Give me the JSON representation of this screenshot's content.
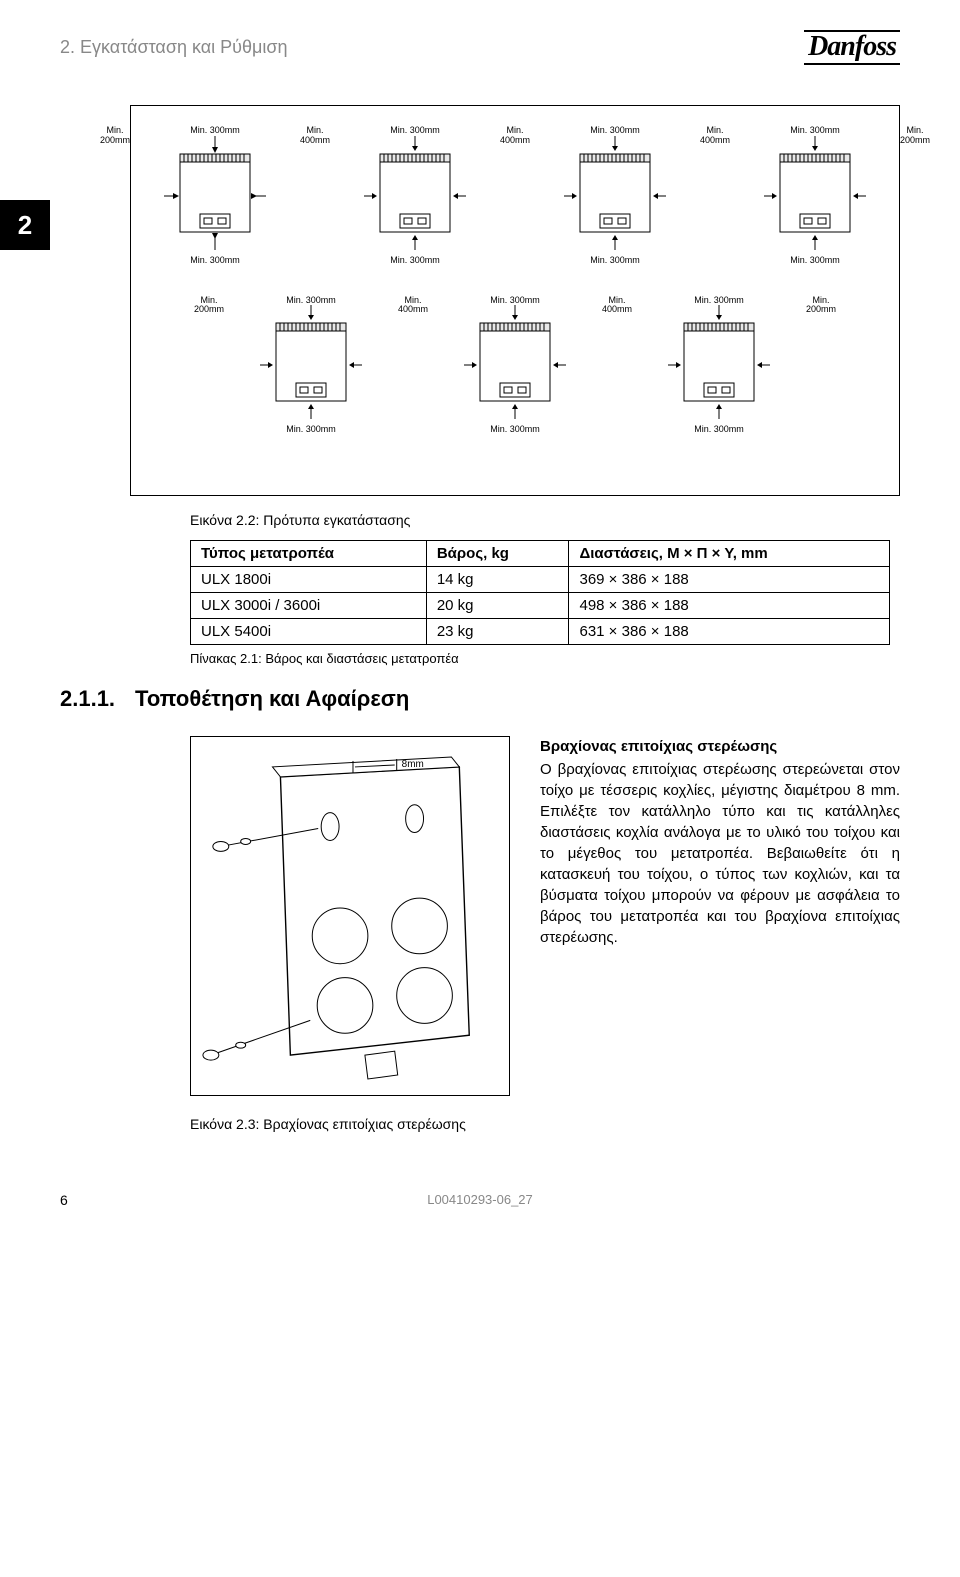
{
  "header": {
    "section_title": "2. Εγκατάσταση και Ρύθμιση",
    "logo_text": "Danfoss"
  },
  "chapter_tab": "2",
  "figure22": {
    "top_clearance": "Min. 300mm",
    "side_outer": "Min.\n200mm",
    "side_inner": "Min.\n400mm",
    "bottom_clearance": "Min. 300mm",
    "caption": "Εικόνα 2.2: Πρότυπα εγκατάστασης"
  },
  "spec_table": {
    "columns": [
      "Τύπος μετατροπέα",
      "Βάρος, kg",
      "Διαστάσεις, Μ × Π × Υ, mm"
    ],
    "rows": [
      [
        "ULX 1800i",
        "14 kg",
        "369 × 386 × 188"
      ],
      [
        "ULX 3000i / 3600i",
        "20 kg",
        "498 × 386 × 188"
      ],
      [
        "ULX 5400i",
        "23 kg",
        "631 × 386 × 188"
      ]
    ],
    "caption": "Πίνακας 2.1: Βάρος και διαστάσεις μετατροπέα"
  },
  "subsection": {
    "number": "2.1.1.",
    "title": "Τοποθέτηση και Αφαίρεση"
  },
  "bracket": {
    "dim_label": "8mm",
    "caption": "Εικόνα 2.3: Βραχίονας επιτοίχιας στερέωσης"
  },
  "body": {
    "heading": "Βραχίονας επιτοίχιας στερέωσης",
    "text": "Ο βραχίονας επιτοίχιας στερέωσης στερεώνεται στον τοίχο με τέσσερις κοχλίες, μέγιστης διαμέτρου 8 mm. Επιλέξτε τον κατάλληλο τύπο και τις κατάλληλες διαστάσεις κοχλία ανάλογα με το υλικό του τοίχου και το μέγεθος του μετατροπέα. Βεβαιωθείτε ότι η κατασκευή του τοίχου, ο τύπος των κοχλιών, και τα βύσματα τοίχου μπορούν να φέρουν με ασφάλεια το βάρος του μετατροπέα και του βραχίονα επιτοίχιας στερέωσης."
  },
  "footer": {
    "page": "6",
    "doc_id": "L00410293-06_27"
  },
  "styles": {
    "unit_stroke": "#000000",
    "unit_fill": "#ffffff",
    "grille_fill": "#e8e8e8"
  }
}
